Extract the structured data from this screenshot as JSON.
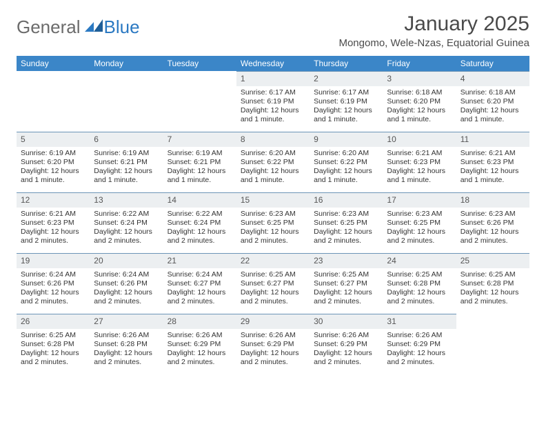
{
  "logo": {
    "general": "General",
    "blue": "Blue"
  },
  "title": "January 2025",
  "location": "Mongomo, Wele-Nzas, Equatorial Guinea",
  "colors": {
    "header_bg": "#3b86c8",
    "header_text": "#ffffff",
    "daynum_bg": "#eceff1",
    "daynum_border": "#6b94b6",
    "text": "#333333",
    "logo_gray": "#6b6b6b",
    "logo_blue": "#2b79c2"
  },
  "weekdays": [
    "Sunday",
    "Monday",
    "Tuesday",
    "Wednesday",
    "Thursday",
    "Friday",
    "Saturday"
  ],
  "weeks": [
    [
      null,
      null,
      null,
      {
        "n": "1",
        "sr": "6:17 AM",
        "ss": "6:19 PM",
        "dl": "12 hours and 1 minute."
      },
      {
        "n": "2",
        "sr": "6:17 AM",
        "ss": "6:19 PM",
        "dl": "12 hours and 1 minute."
      },
      {
        "n": "3",
        "sr": "6:18 AM",
        "ss": "6:20 PM",
        "dl": "12 hours and 1 minute."
      },
      {
        "n": "4",
        "sr": "6:18 AM",
        "ss": "6:20 PM",
        "dl": "12 hours and 1 minute."
      }
    ],
    [
      {
        "n": "5",
        "sr": "6:19 AM",
        "ss": "6:20 PM",
        "dl": "12 hours and 1 minute."
      },
      {
        "n": "6",
        "sr": "6:19 AM",
        "ss": "6:21 PM",
        "dl": "12 hours and 1 minute."
      },
      {
        "n": "7",
        "sr": "6:19 AM",
        "ss": "6:21 PM",
        "dl": "12 hours and 1 minute."
      },
      {
        "n": "8",
        "sr": "6:20 AM",
        "ss": "6:22 PM",
        "dl": "12 hours and 1 minute."
      },
      {
        "n": "9",
        "sr": "6:20 AM",
        "ss": "6:22 PM",
        "dl": "12 hours and 1 minute."
      },
      {
        "n": "10",
        "sr": "6:21 AM",
        "ss": "6:23 PM",
        "dl": "12 hours and 1 minute."
      },
      {
        "n": "11",
        "sr": "6:21 AM",
        "ss": "6:23 PM",
        "dl": "12 hours and 1 minute."
      }
    ],
    [
      {
        "n": "12",
        "sr": "6:21 AM",
        "ss": "6:23 PM",
        "dl": "12 hours and 2 minutes."
      },
      {
        "n": "13",
        "sr": "6:22 AM",
        "ss": "6:24 PM",
        "dl": "12 hours and 2 minutes."
      },
      {
        "n": "14",
        "sr": "6:22 AM",
        "ss": "6:24 PM",
        "dl": "12 hours and 2 minutes."
      },
      {
        "n": "15",
        "sr": "6:23 AM",
        "ss": "6:25 PM",
        "dl": "12 hours and 2 minutes."
      },
      {
        "n": "16",
        "sr": "6:23 AM",
        "ss": "6:25 PM",
        "dl": "12 hours and 2 minutes."
      },
      {
        "n": "17",
        "sr": "6:23 AM",
        "ss": "6:25 PM",
        "dl": "12 hours and 2 minutes."
      },
      {
        "n": "18",
        "sr": "6:23 AM",
        "ss": "6:26 PM",
        "dl": "12 hours and 2 minutes."
      }
    ],
    [
      {
        "n": "19",
        "sr": "6:24 AM",
        "ss": "6:26 PM",
        "dl": "12 hours and 2 minutes."
      },
      {
        "n": "20",
        "sr": "6:24 AM",
        "ss": "6:26 PM",
        "dl": "12 hours and 2 minutes."
      },
      {
        "n": "21",
        "sr": "6:24 AM",
        "ss": "6:27 PM",
        "dl": "12 hours and 2 minutes."
      },
      {
        "n": "22",
        "sr": "6:25 AM",
        "ss": "6:27 PM",
        "dl": "12 hours and 2 minutes."
      },
      {
        "n": "23",
        "sr": "6:25 AM",
        "ss": "6:27 PM",
        "dl": "12 hours and 2 minutes."
      },
      {
        "n": "24",
        "sr": "6:25 AM",
        "ss": "6:28 PM",
        "dl": "12 hours and 2 minutes."
      },
      {
        "n": "25",
        "sr": "6:25 AM",
        "ss": "6:28 PM",
        "dl": "12 hours and 2 minutes."
      }
    ],
    [
      {
        "n": "26",
        "sr": "6:25 AM",
        "ss": "6:28 PM",
        "dl": "12 hours and 2 minutes."
      },
      {
        "n": "27",
        "sr": "6:26 AM",
        "ss": "6:28 PM",
        "dl": "12 hours and 2 minutes."
      },
      {
        "n": "28",
        "sr": "6:26 AM",
        "ss": "6:29 PM",
        "dl": "12 hours and 2 minutes."
      },
      {
        "n": "29",
        "sr": "6:26 AM",
        "ss": "6:29 PM",
        "dl": "12 hours and 2 minutes."
      },
      {
        "n": "30",
        "sr": "6:26 AM",
        "ss": "6:29 PM",
        "dl": "12 hours and 2 minutes."
      },
      {
        "n": "31",
        "sr": "6:26 AM",
        "ss": "6:29 PM",
        "dl": "12 hours and 2 minutes."
      },
      null
    ]
  ],
  "labels": {
    "sunrise": "Sunrise:",
    "sunset": "Sunset:",
    "daylight": "Daylight:"
  }
}
